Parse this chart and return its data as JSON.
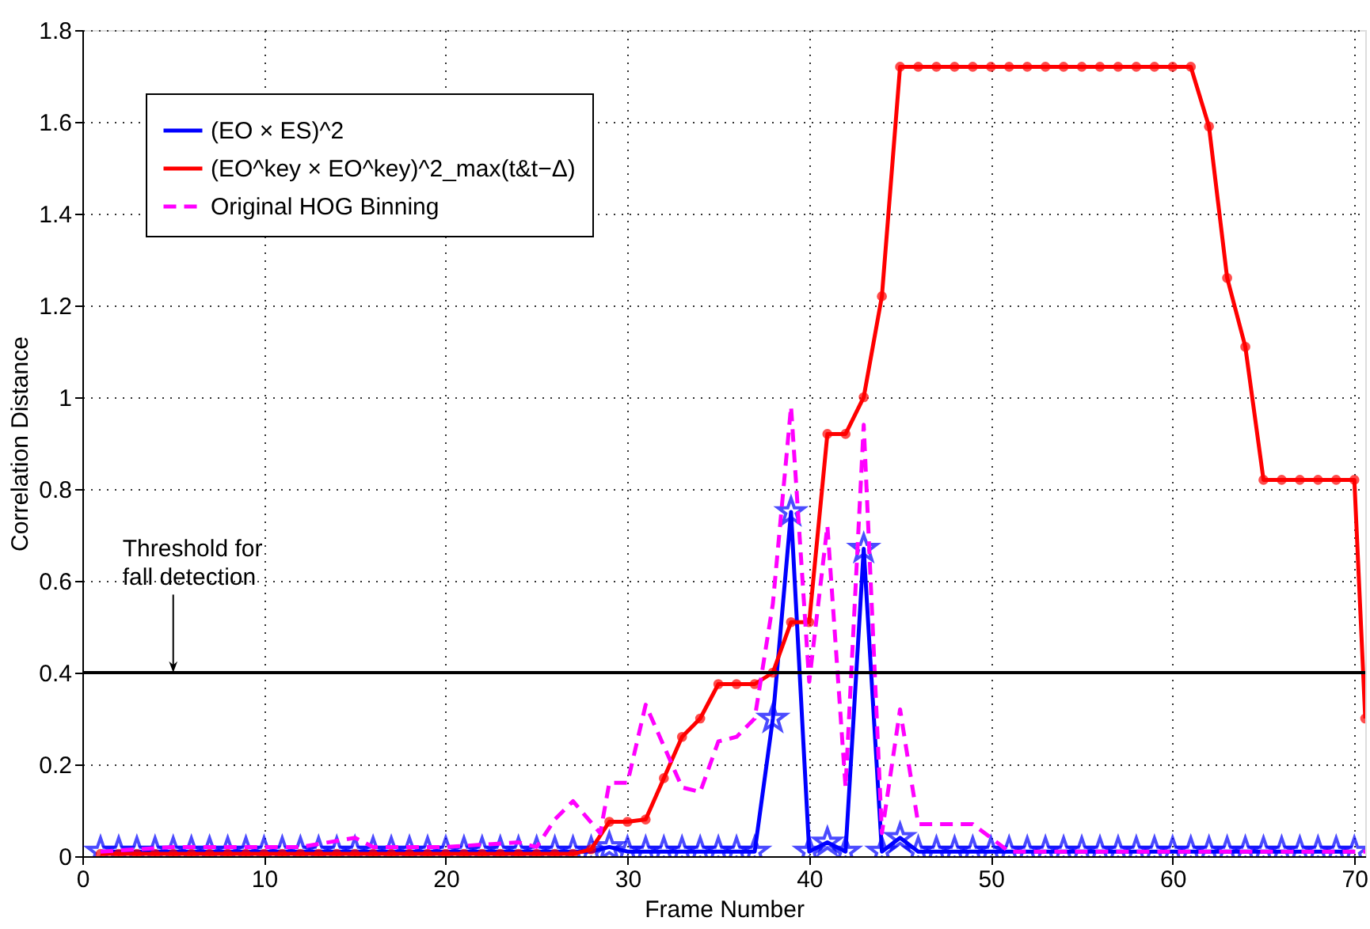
{
  "chart_data": {
    "type": "line",
    "xlabel": "Frame Number",
    "ylabel": "Correlation Distance",
    "xlim": [
      0,
      70.6
    ],
    "xticks": [
      0,
      10,
      20,
      30,
      40,
      50,
      60,
      70
    ],
    "ylim": [
      0,
      1.8
    ],
    "yticks": [
      0,
      0.2,
      0.4,
      0.6,
      0.8,
      1,
      1.2,
      1.4,
      1.6,
      1.8
    ],
    "grid": true,
    "legend": "top left",
    "series": [
      {
        "name": "(EO × ES)^2",
        "color": "#0000ff",
        "marker": "star",
        "line_style": "solid",
        "x": [
          1,
          2,
          3,
          4,
          5,
          6,
          7,
          8,
          9,
          10,
          11,
          12,
          13,
          14,
          15,
          16,
          17,
          18,
          19,
          20,
          21,
          22,
          23,
          24,
          25,
          26,
          27,
          28,
          29,
          30,
          31,
          32,
          33,
          34,
          35,
          36,
          37,
          38,
          39,
          40,
          41,
          42,
          43,
          44,
          45,
          46,
          47,
          48,
          49,
          50,
          51,
          52,
          53,
          54,
          55,
          56,
          57,
          58,
          59,
          60,
          61,
          62,
          63,
          64,
          65,
          66,
          67,
          68,
          69,
          70
        ],
        "values": [
          0.01,
          0.01,
          0.01,
          0.01,
          0.01,
          0.01,
          0.01,
          0.01,
          0.01,
          0.01,
          0.01,
          0.01,
          0.01,
          0.01,
          0.01,
          0.01,
          0.01,
          0.01,
          0.01,
          0.01,
          0.01,
          0.01,
          0.01,
          0.01,
          0.01,
          0.01,
          0.01,
          0.01,
          0.02,
          0.01,
          0.01,
          0.01,
          0.01,
          0.01,
          0.01,
          0.01,
          0.01,
          0.3,
          0.75,
          0.01,
          0.03,
          0.01,
          0.67,
          0.01,
          0.04,
          0.01,
          0.01,
          0.01,
          0.01,
          0.01,
          0.01,
          0.01,
          0.01,
          0.01,
          0.01,
          0.01,
          0.01,
          0.01,
          0.01,
          0.01,
          0.01,
          0.01,
          0.01,
          0.01,
          0.01,
          0.01,
          0.01,
          0.01,
          0.01,
          0.01
        ]
      },
      {
        "name": "(EO^key × EO^key)^2_max(t&t−Δ)",
        "color": "#ff0000",
        "marker": "circle",
        "line_style": "solid",
        "x": [
          1,
          2,
          3,
          4,
          5,
          6,
          7,
          8,
          9,
          10,
          11,
          12,
          13,
          14,
          15,
          16,
          17,
          18,
          19,
          20,
          21,
          22,
          23,
          24,
          25,
          26,
          27,
          28,
          29,
          30,
          31,
          32,
          33,
          34,
          35,
          36,
          37,
          38,
          39,
          40,
          41,
          42,
          43,
          44,
          45,
          46,
          47,
          48,
          49,
          50,
          51,
          52,
          53,
          54,
          55,
          56,
          57,
          58,
          59,
          60,
          61,
          62,
          63,
          64,
          65,
          66,
          67,
          68,
          69,
          70,
          70.6
        ],
        "values": [
          0.005,
          0.005,
          0.005,
          0.005,
          0.005,
          0.005,
          0.005,
          0.005,
          0.005,
          0.005,
          0.005,
          0.005,
          0.005,
          0.005,
          0.005,
          0.005,
          0.005,
          0.005,
          0.005,
          0.005,
          0.005,
          0.005,
          0.005,
          0.005,
          0.005,
          0.005,
          0.005,
          0.015,
          0.075,
          0.075,
          0.08,
          0.17,
          0.26,
          0.3,
          0.375,
          0.375,
          0.375,
          0.4,
          0.51,
          0.51,
          0.92,
          0.92,
          1.0,
          1.22,
          1.72,
          1.72,
          1.72,
          1.72,
          1.72,
          1.72,
          1.72,
          1.72,
          1.72,
          1.72,
          1.72,
          1.72,
          1.72,
          1.72,
          1.72,
          1.72,
          1.72,
          1.59,
          1.26,
          1.11,
          0.82,
          0.82,
          0.82,
          0.82,
          0.82,
          0.82,
          0.3
        ]
      },
      {
        "name": "Original HOG Binning",
        "color": "#ff00ff",
        "marker": "none",
        "line_style": "dashed",
        "x": [
          1,
          5,
          10,
          12,
          15,
          16,
          20,
          24,
          25,
          26,
          27,
          28.5,
          29,
          30,
          31,
          32,
          33,
          34,
          35,
          36,
          37,
          38,
          39,
          40,
          41,
          42,
          43,
          44,
          45,
          46,
          47,
          48,
          49,
          50,
          51,
          55,
          60,
          70,
          70.6
        ],
        "values": [
          0.01,
          0.02,
          0.02,
          0.02,
          0.04,
          0.02,
          0.02,
          0.03,
          0.02,
          0.08,
          0.12,
          0.05,
          0.16,
          0.16,
          0.33,
          0.24,
          0.15,
          0.14,
          0.25,
          0.26,
          0.3,
          0.55,
          0.98,
          0.38,
          0.72,
          0.15,
          0.94,
          0.05,
          0.32,
          0.07,
          0.07,
          0.07,
          0.07,
          0.04,
          0.01,
          0.01,
          0.01,
          0.01,
          0.01
        ]
      }
    ],
    "ref_lines": [
      {
        "axis": "y",
        "value": 0.4,
        "color": "#000000",
        "line_style": "solid"
      }
    ],
    "annotations": [
      {
        "text": "Threshold for\nfall detection",
        "x": 5,
        "y": 0.4
      }
    ]
  }
}
